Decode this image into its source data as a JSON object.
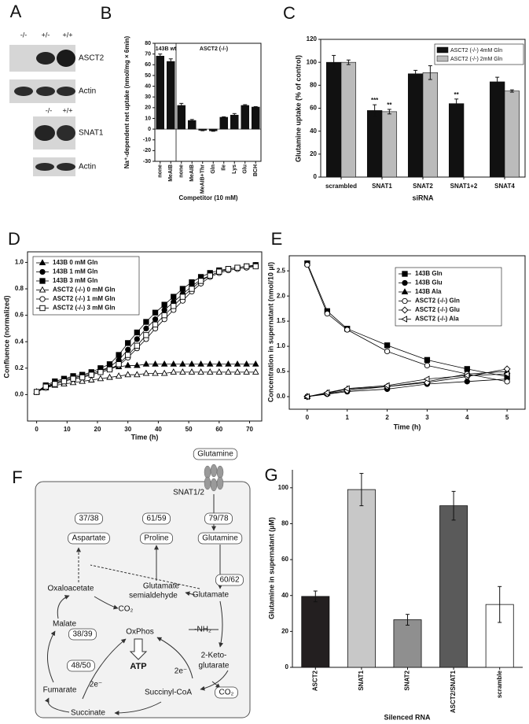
{
  "panel_a": {
    "panel_label": "A",
    "genotypes_top": [
      "-/-",
      "+/-",
      "+/+"
    ],
    "blot_labels_top": [
      "ASCT2",
      "Actin"
    ],
    "genotypes_bottom": [
      "-/-",
      "+/+"
    ],
    "blot_labels_bottom": [
      "SNAT1",
      "Actin"
    ]
  },
  "panel_f": {
    "panel_label": "F",
    "nodes": [
      "Glutamine",
      "SNAT1/2",
      "37/38",
      "Aspartate",
      "61/59",
      "Proline",
      "79/78",
      "Glutamine",
      "60/62",
      "Glutamate",
      "Glutamate",
      "semialdehyde",
      "Oxaloacetate",
      "CO₂",
      "Malate",
      "38/39",
      "48/50",
      "OxPhos",
      "ATP",
      "-NH₂",
      "2-Keto-",
      "glutarate",
      "Fumarate",
      "2e⁻",
      "2e⁻",
      "Succinyl-CoA",
      "CO₂",
      "Succinate"
    ]
  },
  "chart_data": [
    {
      "type": "bar",
      "panel_label": "B",
      "y_label": "Na⁺-dependent net uptake (nmol/mg × 6min)",
      "x_label": "Competitor (10 mM)",
      "annotations": [
        "143B wt",
        "ASCT2 (-/-)"
      ],
      "categories": [
        "none",
        "MeAIB",
        "none",
        "MeAIB",
        "MeAIB+Thr",
        "Gln",
        "Ile",
        "Lys",
        "Glu",
        "BCH"
      ],
      "values": [
        68,
        63,
        22,
        8,
        -1,
        -1.5,
        11,
        13,
        22,
        20.5
      ],
      "errors": [
        2,
        2.5,
        2,
        1,
        0.5,
        0.5,
        0.5,
        1.5,
        0.8,
        0.5
      ],
      "color": "#111111",
      "ylim": [
        -30,
        80
      ],
      "yticks": [
        -30,
        -20,
        -10,
        0,
        10,
        20,
        30,
        40,
        50,
        60,
        70,
        80
      ]
    },
    {
      "type": "bar",
      "panel_label": "C",
      "y_label": "Glutamine uptake (% of control)",
      "x_label": "siRNA",
      "annotations": [
        "***",
        "**",
        "**"
      ],
      "categories": [
        "scrambled",
        "SNAT1",
        "SNAT2",
        "SNAT1+2",
        "SNAT4"
      ],
      "series": [
        {
          "name": "ASCT2 (-/-) 4mM Gln",
          "color": "#111111",
          "values": [
            100,
            58,
            90,
            64,
            83
          ],
          "errors": [
            6,
            5,
            3,
            4,
            4
          ]
        },
        {
          "name": "ASCT2 (-/-) 2mM Gln",
          "color": "#bbbbbb",
          "values": [
            100,
            57,
            91,
            null,
            75
          ],
          "errors": [
            2,
            2,
            6,
            null,
            1
          ]
        }
      ],
      "ylim": [
        0,
        120
      ],
      "yticks": [
        0,
        20,
        40,
        60,
        80,
        100,
        120
      ],
      "legend": "upper right"
    },
    {
      "type": "line",
      "panel_label": "D",
      "y_label": "Confluence (normalized)",
      "x_label": "Time (h)",
      "x": [
        0,
        3,
        6,
        9,
        12,
        15,
        18,
        21,
        24,
        27,
        30,
        33,
        36,
        39,
        42,
        45,
        48,
        51,
        54,
        57,
        60,
        63,
        66,
        69,
        72
      ],
      "xlim": [
        -3,
        74
      ],
      "xticks": [
        0,
        10,
        20,
        30,
        40,
        50,
        60,
        70
      ],
      "ylim": [
        -0.2,
        1.08
      ],
      "yticks": [
        {
          "value": 0,
          "label": "0.0"
        },
        {
          "value": 0.2,
          "label": "0.2"
        },
        {
          "value": 0.4,
          "label": "0.4"
        },
        {
          "value": 0.6,
          "label": "0.6"
        },
        {
          "value": 0.8,
          "label": "0.8"
        },
        {
          "value": 1,
          "label": "1.0"
        }
      ],
      "legend": "upper left",
      "series": [
        {
          "name": "143B 0 mM Gln",
          "color": "#000000",
          "marker": "triangle",
          "filled": true,
          "values": [
            0.02,
            0.06,
            0.09,
            0.11,
            0.13,
            0.14,
            0.16,
            0.18,
            0.2,
            0.21,
            0.22,
            0.22,
            0.23,
            0.23,
            0.23,
            0.23,
            0.23,
            0.23,
            0.23,
            0.23,
            0.23,
            0.23,
            0.23,
            0.23,
            0.23
          ]
        },
        {
          "name": "143B 1 mM Gln",
          "color": "#000000",
          "marker": "circle",
          "filled": true,
          "values": [
            0.02,
            0.06,
            0.09,
            0.11,
            0.13,
            0.14,
            0.16,
            0.18,
            0.21,
            0.26,
            0.34,
            0.42,
            0.5,
            0.57,
            0.64,
            0.7,
            0.76,
            0.82,
            0.87,
            0.9,
            0.93,
            0.95,
            0.96,
            0.97,
            0.98
          ]
        },
        {
          "name": "143B 3 mM Gln",
          "color": "#000000",
          "marker": "square",
          "filled": true,
          "values": [
            0.02,
            0.07,
            0.1,
            0.12,
            0.14,
            0.15,
            0.17,
            0.2,
            0.23,
            0.3,
            0.39,
            0.47,
            0.55,
            0.62,
            0.68,
            0.74,
            0.8,
            0.85,
            0.89,
            0.92,
            0.94,
            0.95,
            0.96,
            0.97,
            0.98
          ]
        },
        {
          "name": "ASCT2 (-/-) 0 mM Gln",
          "color": "#000000",
          "marker": "triangle",
          "filled": false,
          "values": [
            0.02,
            0.05,
            0.07,
            0.08,
            0.09,
            0.1,
            0.11,
            0.12,
            0.13,
            0.14,
            0.15,
            0.15,
            0.16,
            0.16,
            0.16,
            0.17,
            0.17,
            0.17,
            0.17,
            0.17,
            0.17,
            0.17,
            0.17,
            0.17,
            0.17
          ]
        },
        {
          "name": "ASCT2 (-/-) 1 mM Gln",
          "color": "#000000",
          "marker": "circle",
          "filled": false,
          "values": [
            0.02,
            0.05,
            0.08,
            0.1,
            0.12,
            0.13,
            0.15,
            0.17,
            0.19,
            0.22,
            0.28,
            0.35,
            0.42,
            0.5,
            0.57,
            0.64,
            0.71,
            0.78,
            0.84,
            0.89,
            0.92,
            0.94,
            0.95,
            0.96,
            0.97
          ]
        },
        {
          "name": "ASCT2 (-/-) 3 mM Gln",
          "color": "#000000",
          "marker": "square",
          "filled": false,
          "values": [
            0.02,
            0.06,
            0.08,
            0.1,
            0.12,
            0.13,
            0.15,
            0.17,
            0.19,
            0.23,
            0.3,
            0.37,
            0.45,
            0.53,
            0.6,
            0.67,
            0.74,
            0.8,
            0.86,
            0.9,
            0.93,
            0.95,
            0.96,
            0.97,
            0.97
          ]
        }
      ]
    },
    {
      "type": "line",
      "panel_label": "E",
      "y_label": "Concentration in supernatant (nmol/10 µl)",
      "x_label": "Time (h)",
      "x": [
        0,
        0.5,
        1,
        2,
        3,
        4,
        5
      ],
      "xlim": [
        -0.45,
        5.45
      ],
      "xticks": [
        0,
        1,
        2,
        3,
        4,
        5
      ],
      "ylim": [
        -0.25,
        2.8
      ],
      "yticks": [
        {
          "value": 0,
          "label": "0.0"
        },
        {
          "value": 0.5,
          "label": "0.5"
        },
        {
          "value": 1,
          "label": "1.0"
        },
        {
          "value": 1.5,
          "label": "1.5"
        },
        {
          "value": 2,
          "label": "2.0"
        },
        {
          "value": 2.5,
          "label": "2.5"
        }
      ],
      "legend": "upper right",
      "series": [
        {
          "name": "143B Gln",
          "color": "#000000",
          "marker": "square",
          "filled": true,
          "values": [
            2.65,
            1.7,
            1.35,
            1.02,
            0.73,
            0.55,
            0.4
          ]
        },
        {
          "name": "143B Glu",
          "color": "#000000",
          "marker": "circle",
          "filled": true,
          "values": [
            0,
            0.05,
            0.1,
            0.15,
            0.25,
            0.3,
            0.35
          ]
        },
        {
          "name": "143B Ala",
          "color": "#000000",
          "marker": "triangle",
          "filled": true,
          "values": [
            0,
            0.07,
            0.15,
            0.2,
            0.3,
            0.45,
            0.5
          ]
        },
        {
          "name": "ASCT2 (-/-) Gln",
          "color": "#000000",
          "marker": "circle",
          "filled": false,
          "values": [
            2.62,
            1.65,
            1.33,
            0.9,
            0.62,
            0.45,
            0.3
          ]
        },
        {
          "name": "ASCT2 (-/-) Glu",
          "color": "#000000",
          "marker": "diamond",
          "filled": false,
          "values": [
            0,
            0.06,
            0.12,
            0.2,
            0.28,
            0.4,
            0.55
          ]
        },
        {
          "name": "ASCT2 (-/-) Ala",
          "color": "#000000",
          "marker": "triangle-left",
          "filled": false,
          "values": [
            0,
            0.08,
            0.16,
            0.22,
            0.35,
            0.42,
            0.45
          ]
        }
      ]
    },
    {
      "type": "bar",
      "panel_label": "G",
      "y_label": "Glutamine in supernatant (µM)",
      "x_label": "Silenced RNA",
      "categories": [
        "ASCT2",
        "SNAT1",
        "SNAT2",
        "ASCT2/SNAT1",
        "scramble"
      ],
      "values": [
        39.5,
        99,
        26.5,
        90,
        35
      ],
      "errors": [
        3,
        9,
        3,
        8,
        10
      ],
      "colors": [
        "#231f20",
        "#c8c8c8",
        "#8f8f8f",
        "#5a5a5a",
        "#ffffff"
      ],
      "ylim": [
        0,
        110
      ],
      "yticks": [
        0,
        20,
        40,
        60,
        80,
        100
      ]
    }
  ]
}
